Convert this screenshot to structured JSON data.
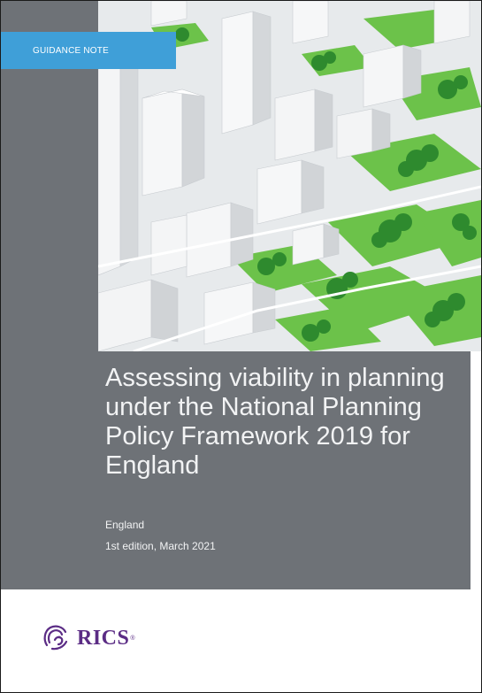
{
  "cover": {
    "tag": "GUIDANCE NOTE",
    "title": "Assessing viability in planning under the National Planning Policy Framework 2019 for England",
    "region": "England",
    "edition": "1st edition, March 2021"
  },
  "brand": {
    "name": "RICS",
    "registered_mark": "®",
    "color": "#5b2c85"
  },
  "colors": {
    "panel": "#6e7277",
    "tag": "#3f9fd8",
    "grass": "#6cc24a",
    "trees": "#2e8a2e"
  }
}
